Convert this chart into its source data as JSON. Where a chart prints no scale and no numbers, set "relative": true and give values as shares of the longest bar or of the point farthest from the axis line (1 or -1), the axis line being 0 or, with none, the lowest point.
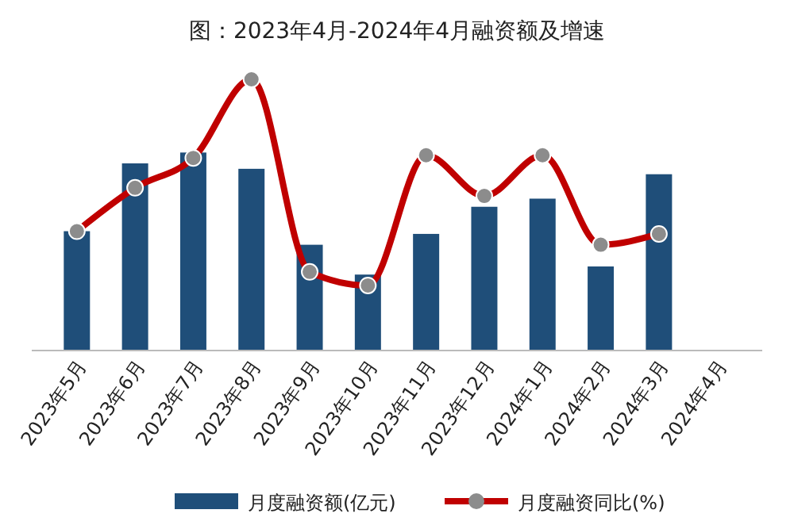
{
  "chart_data": {
    "type": "bar",
    "title": "图：2023年4月-2024年4月融资额及增速",
    "relative": true,
    "categories": [
      "2023年5月",
      "2023年6月",
      "2023年7月",
      "2023年8月",
      "2023年9月",
      "2023年10月",
      "2023年11月",
      "2023年12月",
      "2024年1月",
      "2024年2月",
      "2024年3月",
      "2024年4月"
    ],
    "series": [
      {
        "name": "月度融资额(亿元)",
        "color": "#1f4e79",
        "values": [
          0.44,
          0.69,
          0.73,
          0.67,
          0.39,
          0.28,
          0.43,
          0.53,
          0.56,
          0.31,
          0.65,
          null
        ]
      },
      {
        "name": "月度融资同比(%)",
        "type": "line",
        "color": "#c00000",
        "marker": "circle",
        "values": [
          0.44,
          0.6,
          0.71,
          1,
          0.29,
          0.24,
          0.72,
          0.57,
          0.72,
          0.39,
          0.43,
          null
        ]
      }
    ],
    "legend": "bottom",
    "grid": false
  }
}
